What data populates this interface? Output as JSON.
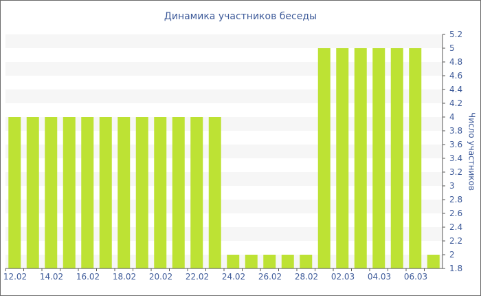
{
  "chart_data": {
    "type": "bar",
    "title": "Динамика участников беседы",
    "xlabel": "",
    "ylabel": "Число участников",
    "ylim": [
      1.8,
      5.2
    ],
    "y_ticks": [
      "1.8",
      "2",
      "2.2",
      "2.4",
      "2.6",
      "2.8",
      "3",
      "3.2",
      "3.4",
      "3.6",
      "3.8",
      "4",
      "4.2",
      "4.4",
      "4.6",
      "4.8",
      "5",
      "5.2"
    ],
    "y_axis_position": "right",
    "grid": "alternating-bands",
    "legend": "none",
    "categories": [
      "12.02",
      "13.02",
      "14.02",
      "15.02",
      "16.02",
      "17.02",
      "18.02",
      "19.02",
      "20.02",
      "21.02",
      "22.02",
      "23.02",
      "24.02",
      "25.02",
      "26.02",
      "27.02",
      "28.02",
      "01.03",
      "02.03",
      "03.03",
      "04.03",
      "05.03",
      "06.03",
      "07.03"
    ],
    "x_tick_labels": [
      "12.02",
      "14.02",
      "16.02",
      "18.02",
      "20.02",
      "22.02",
      "24.02",
      "26.02",
      "28.02",
      "02.03",
      "04.03",
      "06.03"
    ],
    "values": [
      4,
      4,
      4,
      4,
      4,
      4,
      4,
      4,
      4,
      4,
      4,
      4,
      2,
      2,
      2,
      2,
      2,
      5,
      5,
      5,
      5,
      5,
      5,
      2
    ],
    "colors": {
      "bar": "#bde234",
      "text": "#3d5a99",
      "band": "#f6f6f6",
      "axis": "#555555"
    }
  }
}
